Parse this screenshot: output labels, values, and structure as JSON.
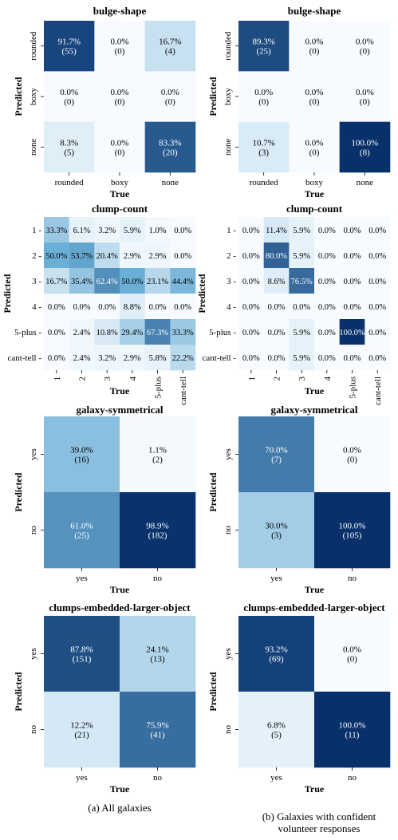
{
  "axis_labels": {
    "x": "True",
    "y": "Predicted"
  },
  "captions": {
    "left": "(a) All galaxies",
    "right_line1": "(b) Galaxies with confident",
    "right_line2": "volunteer responses"
  },
  "colors": {
    "low": "#f7fbff",
    "high": "#08306b"
  },
  "chart_data": [
    {
      "type": "heatmap",
      "panel": "a-bulge-shape",
      "title": "bulge-shape",
      "x_categories": [
        "rounded",
        "boxy",
        "none"
      ],
      "y_categories": [
        "rounded",
        "boxy",
        "none"
      ],
      "values": [
        [
          91.7,
          0.0,
          16.7
        ],
        [
          0.0,
          0.0,
          0.0
        ],
        [
          8.3,
          0.0,
          83.3
        ]
      ],
      "counts": [
        [
          55,
          0,
          4
        ],
        [
          0,
          0,
          0
        ],
        [
          5,
          0,
          20
        ]
      ],
      "xlabel": "True",
      "ylabel": "Predicted"
    },
    {
      "type": "heatmap",
      "panel": "b-bulge-shape",
      "title": "bulge-shape",
      "x_categories": [
        "rounded",
        "boxy",
        "none"
      ],
      "y_categories": [
        "rounded",
        "boxy",
        "none"
      ],
      "values": [
        [
          89.3,
          0.0,
          0.0
        ],
        [
          0.0,
          0.0,
          0.0
        ],
        [
          10.7,
          0.0,
          100.0
        ]
      ],
      "counts": [
        [
          25,
          0,
          0
        ],
        [
          0,
          0,
          0
        ],
        [
          3,
          0,
          8
        ]
      ],
      "xlabel": "True",
      "ylabel": "Predicted"
    },
    {
      "type": "heatmap",
      "panel": "a-clump-count",
      "title": "clump-count",
      "x_categories": [
        "1",
        "2",
        "3",
        "4",
        "5-plus",
        "cant-tell"
      ],
      "y_categories": [
        "1",
        "2",
        "3",
        "4",
        "5-plus",
        "cant-tell"
      ],
      "values": [
        [
          33.3,
          6.1,
          3.2,
          5.9,
          1.0,
          0.0
        ],
        [
          50.0,
          53.7,
          20.4,
          2.9,
          2.9,
          0.0
        ],
        [
          16.7,
          35.4,
          62.4,
          50.0,
          23.1,
          44.4
        ],
        [
          0.0,
          0.0,
          0.0,
          8.8,
          0.0,
          0.0
        ],
        [
          0.0,
          2.4,
          10.8,
          29.4,
          67.3,
          33.3
        ],
        [
          0.0,
          2.4,
          3.2,
          2.9,
          5.8,
          22.2
        ]
      ],
      "xlabel": "True",
      "ylabel": "Predicted"
    },
    {
      "type": "heatmap",
      "panel": "b-clump-count",
      "title": "clump-count",
      "x_categories": [
        "1",
        "2",
        "3",
        "4",
        "5-plus",
        "cant-tell"
      ],
      "y_categories": [
        "1",
        "2",
        "3",
        "4",
        "5-plus",
        "cant-tell"
      ],
      "values": [
        [
          0.0,
          11.4,
          5.9,
          0.0,
          0.0,
          0.0
        ],
        [
          0.0,
          80.0,
          5.9,
          0.0,
          0.0,
          0.0
        ],
        [
          0.0,
          8.6,
          76.5,
          0.0,
          0.0,
          0.0
        ],
        [
          0.0,
          0.0,
          0.0,
          0.0,
          0.0,
          0.0
        ],
        [
          0.0,
          0.0,
          5.9,
          0.0,
          100.0,
          0.0
        ],
        [
          0.0,
          0.0,
          5.9,
          0.0,
          0.0,
          0.0
        ]
      ],
      "xlabel": "True",
      "ylabel": "Predicted"
    },
    {
      "type": "heatmap",
      "panel": "a-galaxy-symmetrical",
      "title": "galaxy-symmetrical",
      "x_categories": [
        "yes",
        "no"
      ],
      "y_categories": [
        "yes",
        "no"
      ],
      "values": [
        [
          39.0,
          1.1
        ],
        [
          61.0,
          98.9
        ]
      ],
      "counts": [
        [
          16,
          2
        ],
        [
          25,
          182
        ]
      ],
      "xlabel": "True",
      "ylabel": "Predicted"
    },
    {
      "type": "heatmap",
      "panel": "b-galaxy-symmetrical",
      "title": "galaxy-symmetrical",
      "x_categories": [
        "yes",
        "no"
      ],
      "y_categories": [
        "yes",
        "no"
      ],
      "values": [
        [
          70.0,
          0.0
        ],
        [
          30.0,
          100.0
        ]
      ],
      "counts": [
        [
          7,
          0
        ],
        [
          3,
          105
        ]
      ],
      "xlabel": "True",
      "ylabel": "Predicted"
    },
    {
      "type": "heatmap",
      "panel": "a-clumps-embedded-larger-object",
      "title": "clumps-embedded-larger-object",
      "x_categories": [
        "yes",
        "no"
      ],
      "y_categories": [
        "yes",
        "no"
      ],
      "values": [
        [
          87.8,
          24.1
        ],
        [
          12.2,
          75.9
        ]
      ],
      "counts": [
        [
          151,
          13
        ],
        [
          21,
          41
        ]
      ],
      "xlabel": "True",
      "ylabel": "Predicted"
    },
    {
      "type": "heatmap",
      "panel": "b-clumps-embedded-larger-object",
      "title": "clumps-embedded-larger-object",
      "x_categories": [
        "yes",
        "no"
      ],
      "y_categories": [
        "yes",
        "no"
      ],
      "values": [
        [
          93.2,
          0.0
        ],
        [
          6.8,
          100.0
        ]
      ],
      "counts": [
        [
          69,
          0
        ],
        [
          5,
          11
        ]
      ],
      "xlabel": "True",
      "ylabel": "Predicted"
    }
  ]
}
